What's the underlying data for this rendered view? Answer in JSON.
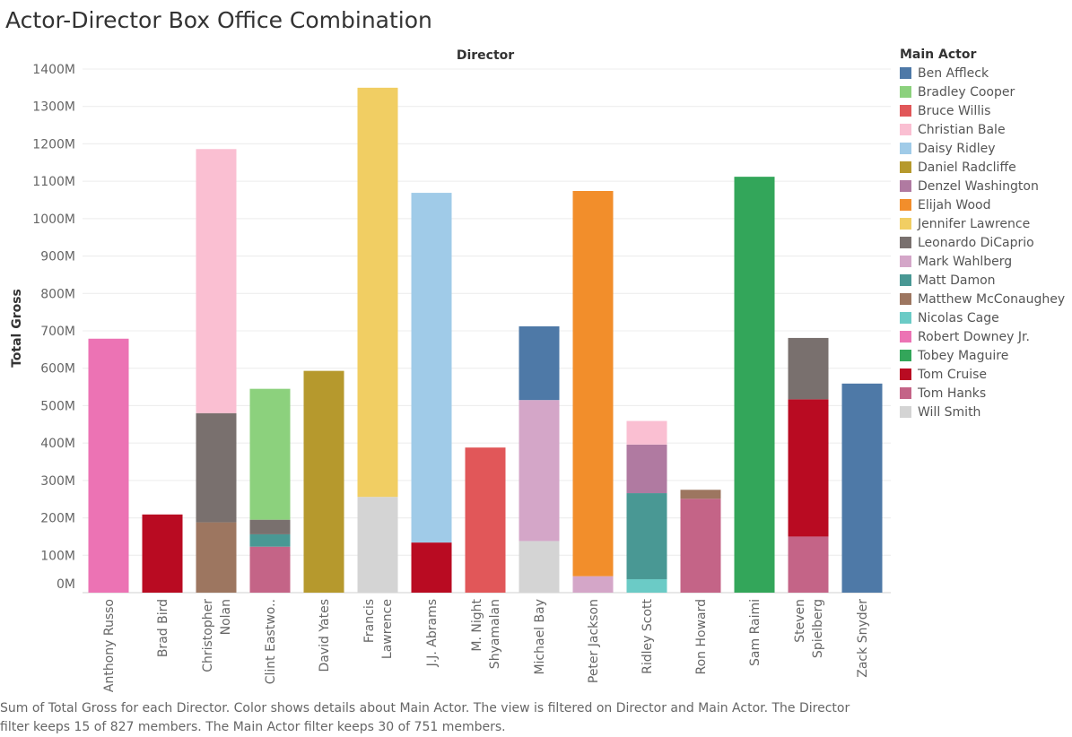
{
  "title": "Actor-Director Box Office Combination",
  "caption": "Sum of Total Gross for each Director.  Color shows details about Main Actor. The view is filtered on Director and Main Actor. The Director filter keeps 15 of 827 members. The Main Actor filter keeps 30 of 751 members.",
  "legend": {
    "title": "Main Actor",
    "items": [
      {
        "label": "Ben Affleck",
        "color": "#4e79a7"
      },
      {
        "label": "Bradley Cooper",
        "color": "#8cd17d"
      },
      {
        "label": "Bruce Willis",
        "color": "#e15759"
      },
      {
        "label": "Christian Bale",
        "color": "#fabfd2"
      },
      {
        "label": "Daisy Ridley",
        "color": "#a0cbe8"
      },
      {
        "label": "Daniel Radcliffe",
        "color": "#b6992d"
      },
      {
        "label": "Denzel Washington",
        "color": "#b07aa1"
      },
      {
        "label": "Elijah Wood",
        "color": "#f28e2b"
      },
      {
        "label": "Jennifer Lawrence",
        "color": "#f1ce63"
      },
      {
        "label": "Leonardo DiCaprio",
        "color": "#79706e"
      },
      {
        "label": "Mark Wahlberg",
        "color": "#d4a6c8"
      },
      {
        "label": "Matt Damon",
        "color": "#499894"
      },
      {
        "label": "Matthew McConaughey",
        "color": "#9d7660"
      },
      {
        "label": "Nicolas Cage",
        "color": "#6bcbc6"
      },
      {
        "label": "Robert Downey Jr.",
        "color": "#ec73b4"
      },
      {
        "label": "Tobey Maguire",
        "color": "#33a65a"
      },
      {
        "label": "Tom Cruise",
        "color": "#b90b22"
      },
      {
        "label": "Tom Hanks",
        "color": "#c46487"
      },
      {
        "label": "Will Smith",
        "color": "#d4d4d4"
      }
    ]
  },
  "chart_data": {
    "type": "bar",
    "stacked": true,
    "title": "",
    "xlabel": "Director",
    "ylabel": "Total Gross",
    "ylim": [
      0,
      1400
    ],
    "yticks": [
      0,
      100,
      200,
      300,
      400,
      500,
      600,
      700,
      800,
      900,
      1000,
      1100,
      1200,
      1300,
      1400
    ],
    "ytick_labels": [
      "0M",
      "100M",
      "200M",
      "300M",
      "400M",
      "500M",
      "600M",
      "700M",
      "800M",
      "900M",
      "1000M",
      "1100M",
      "1200M",
      "1300M",
      "1400M"
    ],
    "unit": "M",
    "grid": true,
    "legend_position": "right",
    "categories": [
      "Anthony Russo",
      "Brad Bird",
      "Christopher Nolan",
      "Clint Eastwo..",
      "David Yates",
      "Francis Lawrence",
      "J.J. Abrams",
      "M. Night Shyamalan",
      "Michael Bay",
      "Peter Jackson",
      "Ridley Scott",
      "Ron Howard",
      "Sam Raimi",
      "Steven Spielberg",
      "Zack Snyder"
    ],
    "category_label_lines": [
      [
        "Anthony Russo"
      ],
      [
        "Brad Bird"
      ],
      [
        "Christopher",
        "Nolan"
      ],
      [
        "Clint Eastwo.."
      ],
      [
        "David Yates"
      ],
      [
        "Francis",
        "Lawrence"
      ],
      [
        "J.J. Abrams"
      ],
      [
        "M. Night",
        "Shyamalan"
      ],
      [
        "Michael Bay"
      ],
      [
        "Peter Jackson"
      ],
      [
        "Ridley Scott"
      ],
      [
        "Ron Howard"
      ],
      [
        "Sam Raimi"
      ],
      [
        "Steven",
        "Spielberg"
      ],
      [
        "Zack Snyder"
      ]
    ],
    "bars": [
      {
        "category": "Anthony Russo",
        "segments": [
          {
            "actor": "Robert Downey Jr.",
            "value": 679
          }
        ]
      },
      {
        "category": "Brad Bird",
        "segments": [
          {
            "actor": "Tom Cruise",
            "value": 209
          }
        ]
      },
      {
        "category": "Christopher Nolan",
        "segments": [
          {
            "actor": "Matthew McConaughey",
            "value": 188
          },
          {
            "actor": "Leonardo DiCaprio",
            "value": 292
          },
          {
            "actor": "Christian Bale",
            "value": 706
          }
        ]
      },
      {
        "category": "Clint Eastwo..",
        "segments": [
          {
            "actor": "Tom Hanks",
            "value": 123
          },
          {
            "actor": "Matt Damon",
            "value": 33
          },
          {
            "actor": "Leonardo DiCaprio",
            "value": 39
          },
          {
            "actor": "Bradley Cooper",
            "value": 350
          }
        ]
      },
      {
        "category": "David Yates",
        "segments": [
          {
            "actor": "Daniel Radcliffe",
            "value": 593
          }
        ]
      },
      {
        "category": "Francis Lawrence",
        "segments": [
          {
            "actor": "Will Smith",
            "value": 256
          },
          {
            "actor": "Jennifer Lawrence",
            "value": 1094
          }
        ]
      },
      {
        "category": "J.J. Abrams",
        "segments": [
          {
            "actor": "Tom Cruise",
            "value": 134
          },
          {
            "actor": "Daisy Ridley",
            "value": 935
          }
        ]
      },
      {
        "category": "M. Night Shyamalan",
        "segments": [
          {
            "actor": "Bruce Willis",
            "value": 388
          }
        ]
      },
      {
        "category": "Michael Bay",
        "segments": [
          {
            "actor": "Will Smith",
            "value": 138
          },
          {
            "actor": "Mark Wahlberg",
            "value": 377
          },
          {
            "actor": "Ben Affleck",
            "value": 197
          }
        ]
      },
      {
        "category": "Peter Jackson",
        "segments": [
          {
            "actor": "Mark Wahlberg",
            "value": 44
          },
          {
            "actor": "Elijah Wood",
            "value": 1030
          }
        ]
      },
      {
        "category": "Ridley Scott",
        "segments": [
          {
            "actor": "Nicolas Cage",
            "value": 36
          },
          {
            "actor": "Matt Damon",
            "value": 230
          },
          {
            "actor": "Denzel Washington",
            "value": 130
          },
          {
            "actor": "Christian Bale",
            "value": 63
          }
        ]
      },
      {
        "category": "Ron Howard",
        "segments": [
          {
            "actor": "Tom Hanks",
            "value": 251
          },
          {
            "actor": "Matthew McConaughey",
            "value": 24
          }
        ]
      },
      {
        "category": "Sam Raimi",
        "segments": [
          {
            "actor": "Tobey Maguire",
            "value": 1112
          }
        ]
      },
      {
        "category": "Steven Spielberg",
        "segments": [
          {
            "actor": "Tom Hanks",
            "value": 150
          },
          {
            "actor": "Tom Cruise",
            "value": 367
          },
          {
            "actor": "Leonardo DiCaprio",
            "value": 164
          }
        ]
      },
      {
        "category": "Zack Snyder",
        "segments": [
          {
            "actor": "Ben Affleck",
            "value": 559
          }
        ]
      }
    ]
  }
}
